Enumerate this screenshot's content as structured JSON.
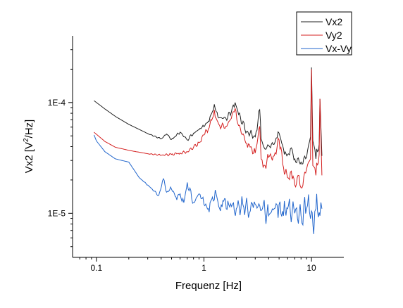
{
  "chart_data": {
    "type": "line",
    "xlabel": "Frequenz [Hz]",
    "ylabel_main": "Vx2 [V",
    "ylabel_sup": "2",
    "ylabel_rest": "/Hz]",
    "x_scale": "log",
    "y_scale": "log",
    "xlim": [
      0.06,
      20
    ],
    "ylim": [
      4e-06,
      0.0004
    ],
    "x_ticks": [
      {
        "value": 0.1,
        "label": "0.1"
      },
      {
        "value": 1,
        "label": "1"
      },
      {
        "value": 10,
        "label": "10"
      }
    ],
    "y_ticks": [
      {
        "value": 1e-05,
        "label": "1E-5"
      },
      {
        "value": 0.0001,
        "label": "1E-4"
      }
    ],
    "grid": false,
    "legend_position": "top-right",
    "series": [
      {
        "name": "Vx2",
        "color": "#222222",
        "x": [
          0.095,
          0.12,
          0.15,
          0.2,
          0.3,
          0.4,
          0.45,
          0.5,
          0.6,
          0.7,
          0.8,
          0.9,
          1.0,
          1.1,
          1.2,
          1.25,
          1.3,
          1.4,
          1.6,
          1.8,
          1.95,
          2.1,
          2.5,
          3.0,
          3.3,
          3.4,
          3.7,
          4.0,
          4.5,
          5.0,
          5.5,
          6.0,
          6.5,
          7.0,
          8.0,
          9.0,
          9.8,
          10.0,
          10.3,
          11.0,
          11.8,
          12.0,
          12.5
        ],
        "y": [
          0.000104,
          8.75e-05,
          7.5e-05,
          6.35e-05,
          5.25e-05,
          4.7e-05,
          5.2e-05,
          4.65e-05,
          5.4e-05,
          4.6e-05,
          5.3e-05,
          5.7e-05,
          6.05e-05,
          6.8e-05,
          8.3e-05,
          9.65e-05,
          8.3e-05,
          7.3e-05,
          7.2e-05,
          8.2e-05,
          0.0001,
          7.8e-05,
          5.5e-05,
          4.9e-05,
          8.6e-05,
          4.7e-05,
          3.8e-05,
          4.1e-05,
          4.2e-05,
          5.3e-05,
          3.8e-05,
          3.4e-05,
          3.9e-05,
          3.1e-05,
          2.9e-05,
          3.2e-05,
          4.9e-05,
          0.000208,
          4.5e-05,
          3.1e-05,
          4.2e-05,
          0.000108,
          3.3e-05
        ]
      },
      {
        "name": "Vy2",
        "color": "#d42020",
        "x": [
          0.095,
          0.12,
          0.15,
          0.2,
          0.3,
          0.4,
          0.5,
          0.6,
          0.7,
          0.8,
          0.9,
          1.0,
          1.1,
          1.2,
          1.25,
          1.3,
          1.4,
          1.6,
          1.8,
          1.95,
          2.1,
          2.5,
          3.0,
          3.3,
          3.4,
          3.7,
          4.0,
          4.5,
          5.0,
          5.5,
          6.0,
          6.5,
          7.0,
          7.5,
          8.0,
          9.0,
          9.8,
          10.0,
          10.3,
          11.0,
          11.8,
          12.0,
          12.5
        ],
        "y": [
          5.4e-05,
          4.45e-05,
          3.95e-05,
          3.7e-05,
          3.45e-05,
          3.35e-05,
          3.4e-05,
          3.5e-05,
          3.6e-05,
          3.95e-05,
          4.35e-05,
          5.1e-05,
          5.8e-05,
          7.2e-05,
          8.55e-05,
          7.2e-05,
          6.2e-05,
          6.1e-05,
          7.2e-05,
          8.85e-05,
          6.2e-05,
          4.3e-05,
          3.5e-05,
          6.1e-05,
          3.1e-05,
          2.7e-05,
          3.2e-05,
          3.3e-05,
          4.6e-05,
          2.6e-05,
          2.1e-05,
          2.4e-05,
          1.8e-05,
          2.2e-05,
          1.7e-05,
          2.5e-05,
          3.1e-05,
          0.0002,
          2.7e-05,
          2.2e-05,
          3.4e-05,
          0.000108,
          2.2e-05
        ]
      },
      {
        "name": "Vx-Vy",
        "color": "#2266cc",
        "x": [
          0.095,
          0.1,
          0.12,
          0.15,
          0.2,
          0.25,
          0.3,
          0.38,
          0.42,
          0.45,
          0.5,
          0.55,
          0.6,
          0.65,
          0.7,
          0.8,
          0.9,
          1.0,
          1.1,
          1.2,
          1.3,
          1.4,
          1.5,
          1.7,
          2.0,
          2.3,
          2.7,
          3.0,
          3.5,
          4.0,
          4.5,
          5.0,
          5.5,
          6.0,
          7.0,
          8.0,
          9.0,
          10.0,
          10.5,
          11.0,
          12.0,
          12.5
        ],
        "y": [
          5.1e-05,
          4.5e-05,
          3.6e-05,
          3.1e-05,
          2.9e-05,
          2.1e-05,
          1.8e-05,
          1.45e-05,
          2.05e-05,
          1.55e-05,
          1.65e-05,
          1.4e-05,
          1.5e-05,
          1.25e-05,
          1.9e-05,
          1.25e-05,
          1.5e-05,
          1.2e-05,
          1.1e-05,
          1.4e-05,
          1.5e-05,
          1.1e-05,
          1.3e-05,
          1.2e-05,
          1.1e-05,
          1.2e-05,
          1.05e-05,
          1.2e-05,
          1.1e-05,
          9.5e-06,
          1.1e-05,
          1.2e-05,
          9.5e-06,
          1.1e-05,
          1e-05,
          9.5e-06,
          1.1e-05,
          1.05e-05,
          6.5e-06,
          1.1e-05,
          9.5e-06,
          1.1e-05
        ]
      }
    ]
  }
}
